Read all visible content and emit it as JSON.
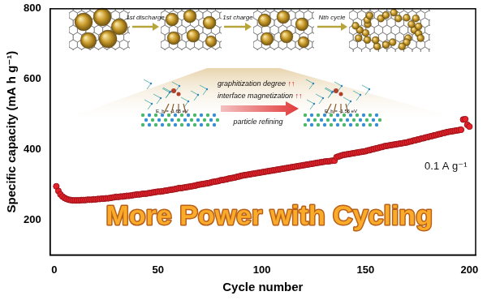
{
  "chart_data": {
    "type": "scatter",
    "title": "More Power with Cycling",
    "x_label": "Cycle number",
    "y_label": "Specific capacity (mA h g⁻¹)",
    "annotations": [
      "0.1 A g⁻¹"
    ],
    "inset": {
      "stages": [
        "1st discharge",
        "1st charge",
        "Nth cycle"
      ],
      "effects": [
        "graphitization degree ↑↑",
        "interface magnetization ↑↑"
      ],
      "process": "particle refining",
      "energies": [
        "E_b = -1.65 eV",
        "E_b = -1.56 eV"
      ]
    },
    "color": "#e8202a",
    "marker": "circle",
    "grid": false,
    "xlim": [
      -2,
      203
    ],
    "xticks": [
      0,
      50,
      100,
      150,
      200
    ],
    "ylim": [
      100,
      800
    ],
    "yticks": [
      200,
      400,
      600,
      800
    ],
    "x": [
      1,
      2,
      3,
      4,
      5,
      6,
      7,
      8,
      9,
      10,
      11,
      12,
      13,
      14,
      15,
      16,
      17,
      18,
      19,
      20,
      21,
      22,
      23,
      24,
      25,
      26,
      27,
      28,
      29,
      30,
      31,
      32,
      33,
      34,
      35,
      36,
      37,
      38,
      39,
      40,
      41,
      42,
      43,
      44,
      45,
      46,
      47,
      48,
      49,
      50,
      51,
      52,
      53,
      54,
      55,
      56,
      57,
      58,
      59,
      60,
      61,
      62,
      63,
      64,
      65,
      66,
      67,
      68,
      69,
      70,
      71,
      72,
      73,
      74,
      75,
      76,
      77,
      78,
      79,
      80,
      81,
      82,
      83,
      84,
      85,
      86,
      87,
      88,
      89,
      90,
      91,
      92,
      93,
      94,
      95,
      96,
      97,
      98,
      99,
      100,
      101,
      102,
      103,
      104,
      105,
      106,
      107,
      108,
      109,
      110,
      111,
      112,
      113,
      114,
      115,
      116,
      117,
      118,
      119,
      120,
      121,
      122,
      123,
      124,
      125,
      126,
      127,
      128,
      129,
      130,
      131,
      132,
      133,
      134,
      135,
      136,
      137,
      138,
      139,
      140,
      141,
      142,
      143,
      144,
      145,
      146,
      147,
      148,
      149,
      150,
      151,
      152,
      153,
      154,
      155,
      156,
      157,
      158,
      159,
      160,
      161,
      162,
      163,
      164,
      165,
      166,
      167,
      168,
      169,
      170,
      171,
      172,
      173,
      174,
      175,
      176,
      177,
      178,
      179,
      180,
      181,
      182,
      183,
      184,
      185,
      186,
      187,
      188,
      189,
      190,
      191,
      192,
      193,
      194,
      195,
      196,
      197,
      198,
      199,
      200
    ],
    "values": [
      295,
      282,
      272,
      266,
      262,
      259,
      257,
      256,
      255,
      255,
      255,
      255,
      256,
      256,
      256,
      257,
      257,
      257,
      258,
      258,
      259,
      259,
      260,
      260,
      261,
      261,
      262,
      263,
      264,
      265,
      265,
      266,
      266,
      267,
      268,
      268,
      269,
      270,
      271,
      272,
      272,
      273,
      274,
      274,
      275,
      276,
      277,
      278,
      279,
      280,
      280,
      281,
      282,
      283,
      284,
      285,
      286,
      287,
      288,
      290,
      290,
      291,
      292,
      293,
      294,
      295,
      296,
      297,
      299,
      300,
      301,
      302,
      303,
      304,
      305,
      307,
      308,
      309,
      310,
      312,
      313,
      314,
      315,
      317,
      318,
      319,
      320,
      322,
      323,
      325,
      326,
      327,
      328,
      329,
      330,
      331,
      332,
      333,
      334,
      335,
      336,
      337,
      338,
      339,
      340,
      341,
      342,
      343,
      344,
      345,
      346,
      347,
      348,
      349,
      350,
      351,
      352,
      353,
      354,
      355,
      356,
      357,
      358,
      359,
      360,
      361,
      362,
      363,
      364,
      365,
      366,
      366,
      367,
      368,
      368,
      378,
      380,
      382,
      384,
      385,
      386,
      387,
      388,
      389,
      390,
      391,
      392,
      393,
      394,
      395,
      397,
      398,
      400,
      401,
      403,
      404,
      406,
      407,
      409,
      410,
      411,
      412,
      413,
      414,
      415,
      416,
      417,
      418,
      419,
      420,
      422,
      423,
      425,
      426,
      428,
      429,
      431,
      432,
      434,
      435,
      437,
      438,
      440,
      441,
      443,
      444,
      446,
      447,
      449,
      450,
      451,
      452,
      453,
      454,
      455,
      456,
      485,
      486,
      470,
      465
    ]
  }
}
